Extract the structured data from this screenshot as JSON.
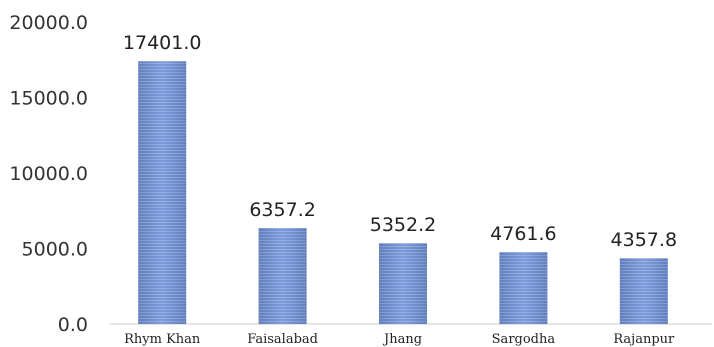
{
  "chart_data": {
    "type": "bar",
    "title": "",
    "xlabel": "",
    "ylabel": "",
    "categories": [
      "Rhym Khan",
      "Faisalabad",
      "Jhang",
      "Sargodha",
      "Rajanpur"
    ],
    "values": [
      17401.0,
      6357.2,
      5352.2,
      4761.6,
      4357.8
    ],
    "value_labels": [
      "17401.0",
      "6357.2",
      "5352.2",
      "4761.6",
      "4357.8"
    ],
    "ylim": [
      0,
      20000
    ],
    "yticks": [
      0,
      5000,
      10000,
      15000,
      20000
    ],
    "ytick_labels": [
      "0.0",
      "5000.0",
      "10000.0",
      "15000.0",
      "20000.0"
    ],
    "grid": false,
    "legend": "none",
    "bar_color": "#6f8fd6",
    "bar_stripe_color": "#8fa9e4"
  }
}
